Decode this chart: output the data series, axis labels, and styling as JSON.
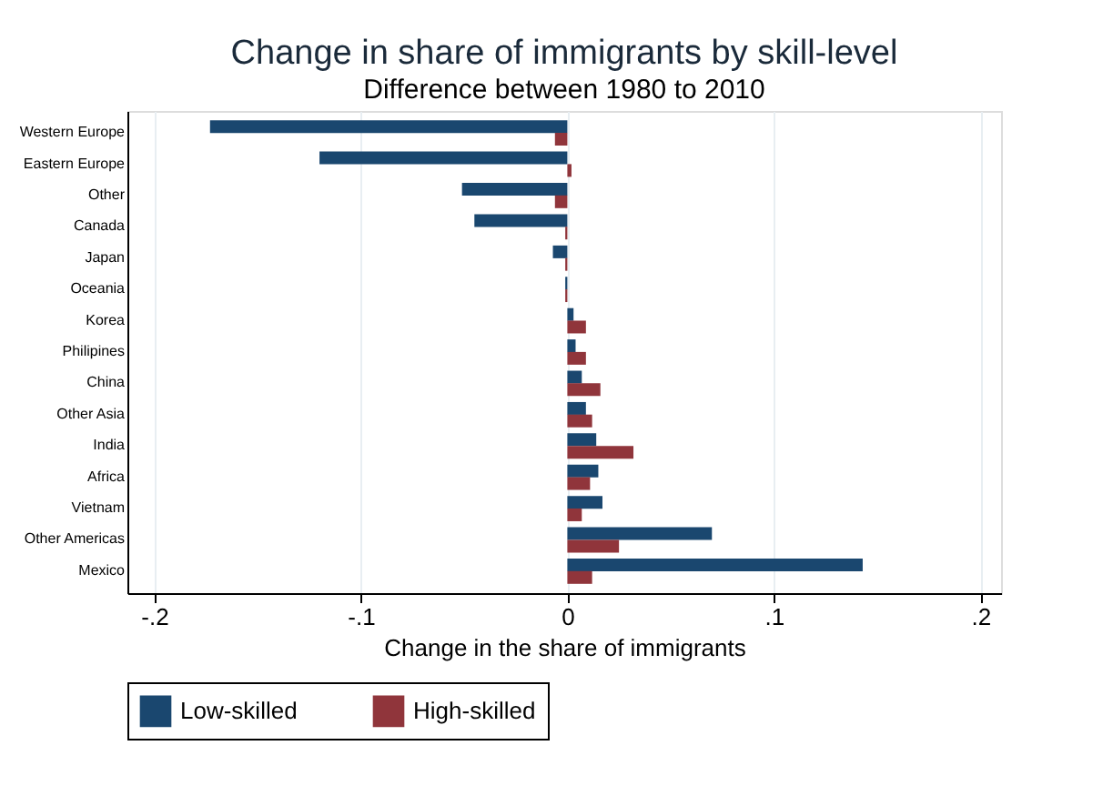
{
  "chart_data": {
    "type": "bar",
    "orientation": "horizontal",
    "title": "Change in share of immigrants by skill-level",
    "subtitle": "Difference between 1980 to 2010",
    "xlabel": "Change in the share of immigrants",
    "categories": [
      "Western Europe",
      "Eastern Europe",
      "Other",
      "Canada",
      "Japan",
      "Oceania",
      "Korea",
      "Philipines",
      "China",
      "Other Asia",
      "India",
      "Africa",
      "Vietnam",
      "Other Americas",
      "Mexico"
    ],
    "series": [
      {
        "name": "Low-skilled",
        "color": "#1a476f",
        "values": [
          -0.173,
          -0.12,
          -0.051,
          -0.045,
          -0.007,
          -0.001,
          0.003,
          0.004,
          0.007,
          0.009,
          0.014,
          0.015,
          0.017,
          0.07,
          0.143
        ]
      },
      {
        "name": "High-skilled",
        "color": "#90353b",
        "values": [
          -0.006,
          0.002,
          -0.006,
          -0.001,
          -0.001,
          -0.001,
          0.009,
          0.009,
          0.016,
          0.012,
          0.032,
          0.011,
          0.007,
          0.025,
          0.012
        ]
      }
    ],
    "xlim": [
      -0.213,
      0.21
    ],
    "xticks": [
      {
        "value": -0.2,
        "label": "-.2"
      },
      {
        "value": -0.1,
        "label": "-.1"
      },
      0,
      {
        "value": 0.1,
        "label": ".1"
      },
      {
        "value": 0.2,
        "label": ".2"
      }
    ],
    "grid": "x",
    "legend": "bottom"
  }
}
